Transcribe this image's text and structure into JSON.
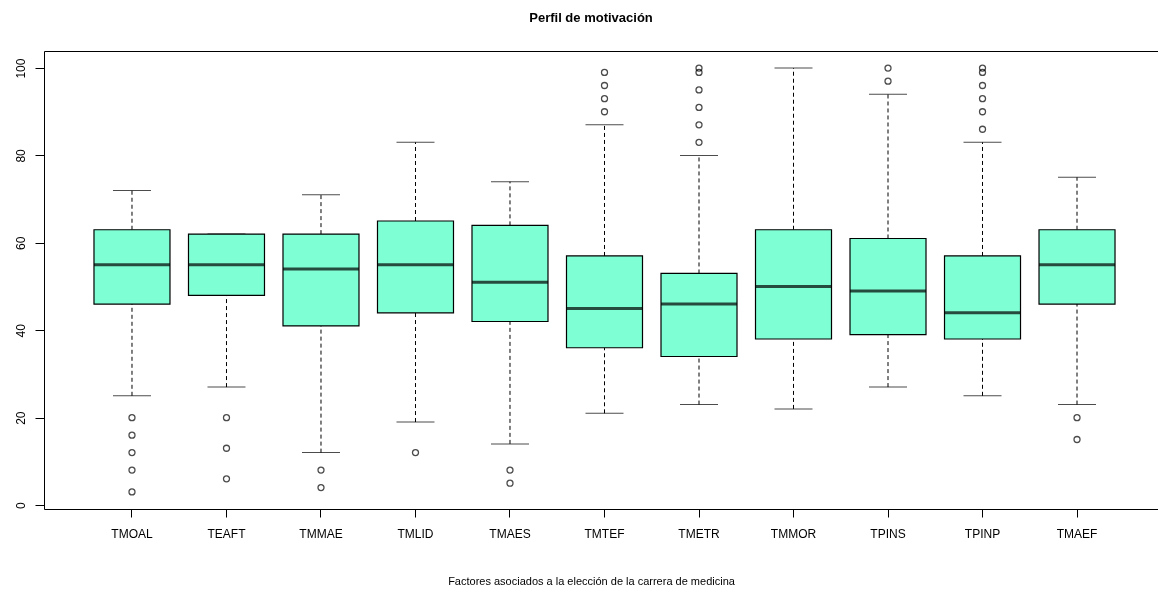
{
  "chart_data": {
    "type": "box",
    "title": "Perfil de motivación",
    "xlabel": "Factores asociados a la elección de la carrera de medicina",
    "categories": [
      "TMOAL",
      "TEAFT",
      "TMMAE",
      "TMLID",
      "TMAES",
      "TMTEF",
      "TMETR",
      "TMMOR",
      "TPINS",
      "TPINP",
      "TMAEF"
    ],
    "color": "#7fffd4",
    "ylim": [
      -0.9,
      103.9
    ],
    "yticks": [
      0,
      20,
      40,
      60,
      80,
      100
    ],
    "marker": "circle",
    "boxes": [
      {
        "low": 25,
        "q1": 46,
        "median": 55,
        "q3": 63,
        "high": 72,
        "outliers": [
          20,
          16,
          12,
          8,
          3
        ]
      },
      {
        "low": 27,
        "q1": 48,
        "median": 55,
        "q3": 62,
        "high": 62,
        "outliers": [
          20,
          13,
          6
        ]
      },
      {
        "low": 12,
        "q1": 41,
        "median": 54,
        "q3": 62,
        "high": 71,
        "outliers": [
          8,
          4
        ]
      },
      {
        "low": 19,
        "q1": 44,
        "median": 55,
        "q3": 65,
        "high": 83,
        "outliers": [
          12
        ]
      },
      {
        "low": 14,
        "q1": 42,
        "median": 51,
        "q3": 64,
        "high": 74,
        "outliers": [
          8,
          5
        ]
      },
      {
        "low": 21,
        "q1": 36,
        "median": 45,
        "q3": 57,
        "high": 87,
        "outliers": [
          90,
          93,
          96,
          99
        ]
      },
      {
        "low": 23,
        "q1": 34,
        "median": 46,
        "q3": 53,
        "high": 80,
        "outliers": [
          83,
          87,
          91,
          95,
          99,
          100
        ]
      },
      {
        "low": 22,
        "q1": 38,
        "median": 50,
        "q3": 63,
        "high": 100
      },
      {
        "low": 27,
        "q1": 39,
        "median": 49,
        "q3": 61,
        "high": 94,
        "outliers": [
          97,
          100
        ]
      },
      {
        "low": 25,
        "q1": 38,
        "median": 44,
        "q3": 57,
        "high": 83,
        "outliers": [
          86,
          90,
          93,
          96,
          99,
          100
        ]
      },
      {
        "low": 23,
        "q1": 46,
        "median": 55,
        "q3": 63,
        "high": 75,
        "outliers": [
          20,
          15
        ]
      }
    ]
  }
}
